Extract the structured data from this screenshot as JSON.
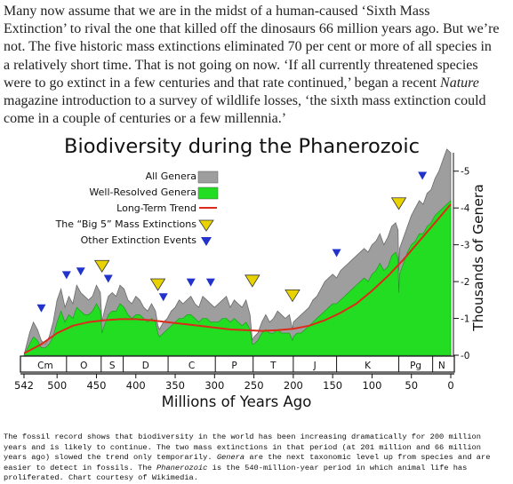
{
  "article": {
    "lines": [
      [
        "Many now assume that we are in the midst of a human-caused ‘Sixth Mass"
      ],
      [
        "Extinction’ to rival the one that killed off the dinosaurs 66 million years ago. But we’re"
      ],
      [
        "not. The five historic mass extinctions eliminated 70 per cent or more of all species in"
      ],
      [
        "a relatively short time. That is not going on now. ‘If all currently threatened species"
      ],
      [
        "were to go extinct in a few centuries and that rate continued,’ began a recent ",
        "Nature"
      ],
      [
        "magazine introduction to a survey of wildlife losses, ‘the sixth mass extinction could"
      ],
      [
        "come in a couple of centuries or a few millennia.’"
      ]
    ]
  },
  "chart_data": {
    "type": "area",
    "title": "Biodiversity during the Phanerozoic",
    "xlabel": "Millions of Years Ago",
    "ylabel": "Thousands of Genera",
    "xlim": [
      542,
      0
    ],
    "ylim": [
      0,
      5.5
    ],
    "x_ticks": [
      542,
      500,
      450,
      400,
      350,
      300,
      250,
      200,
      150,
      100,
      50,
      0
    ],
    "y_ticks": [
      0,
      1,
      2,
      3,
      4,
      5
    ],
    "periods": [
      "Cm",
      "O",
      "S",
      "D",
      "C",
      "P",
      "T",
      "J",
      "K",
      "Pg",
      "N"
    ],
    "period_boundaries": [
      542,
      488,
      444,
      416,
      359,
      299,
      251,
      200,
      145,
      66,
      23,
      0
    ],
    "legend": {
      "items": [
        "All Genera",
        "Well-Resolved Genera",
        "Long-Term Trend",
        "The “Big 5” Mass Extinctions",
        "Other Extinction Events"
      ],
      "placement": "top-left"
    },
    "colors": {
      "all": "#9e9e9e",
      "resolved": "#22dd22",
      "trend": "#dd2a1a",
      "big5": "#e8d200",
      "other": "#2233cc"
    },
    "series": [
      {
        "name": "All Genera",
        "x": [
          542,
          535,
          530,
          525,
          520,
          515,
          510,
          505,
          500,
          495,
          490,
          485,
          480,
          475,
          470,
          465,
          460,
          455,
          450,
          445,
          443,
          440,
          435,
          430,
          425,
          420,
          415,
          410,
          405,
          400,
          395,
          390,
          385,
          380,
          375,
          372,
          370,
          365,
          360,
          355,
          350,
          345,
          340,
          335,
          330,
          325,
          320,
          315,
          310,
          305,
          300,
          295,
          290,
          285,
          280,
          275,
          270,
          265,
          260,
          255,
          252,
          250,
          245,
          240,
          235,
          230,
          225,
          220,
          215,
          210,
          205,
          201,
          200,
          195,
          190,
          185,
          180,
          175,
          170,
          165,
          160,
          155,
          150,
          145,
          140,
          135,
          130,
          125,
          120,
          115,
          110,
          105,
          100,
          95,
          90,
          85,
          80,
          75,
          70,
          67,
          66,
          65,
          60,
          55,
          50,
          45,
          40,
          35,
          30,
          25,
          20,
          15,
          10,
          5,
          0
        ],
        "y": [
          0.0,
          0.6,
          0.9,
          0.7,
          0.4,
          0.3,
          0.5,
          0.9,
          1.5,
          1.8,
          1.3,
          1.6,
          1.4,
          1.9,
          1.7,
          1.6,
          1.5,
          1.6,
          1.9,
          1.7,
          0.9,
          1.2,
          1.6,
          1.7,
          1.6,
          1.9,
          1.8,
          1.5,
          1.4,
          1.6,
          1.5,
          1.3,
          1.2,
          1.4,
          1.2,
          0.8,
          0.7,
          0.9,
          1.0,
          1.2,
          1.3,
          1.5,
          1.4,
          1.5,
          1.6,
          1.4,
          1.3,
          1.6,
          1.5,
          1.4,
          1.3,
          1.4,
          1.5,
          1.6,
          1.3,
          1.5,
          1.4,
          1.3,
          1.5,
          1.1,
          0.4,
          0.5,
          0.6,
          0.9,
          1.1,
          0.9,
          1.0,
          1.2,
          1.1,
          1.0,
          1.1,
          0.7,
          0.9,
          1.0,
          1.1,
          1.2,
          1.3,
          1.5,
          1.6,
          1.8,
          2.0,
          2.1,
          2.2,
          2.1,
          2.3,
          2.4,
          2.5,
          2.6,
          2.7,
          2.8,
          2.9,
          2.8,
          3.0,
          3.1,
          3.3,
          3.0,
          3.2,
          3.5,
          3.6,
          3.4,
          2.3,
          2.9,
          3.2,
          3.5,
          3.8,
          4.0,
          4.2,
          4.1,
          4.4,
          4.5,
          4.8,
          5.0,
          5.3,
          5.6,
          5.5
        ]
      },
      {
        "name": "Well-Resolved Genera",
        "x": [
          542,
          535,
          530,
          525,
          520,
          515,
          510,
          505,
          500,
          495,
          490,
          485,
          480,
          475,
          470,
          465,
          460,
          455,
          450,
          445,
          443,
          440,
          435,
          430,
          425,
          420,
          415,
          410,
          405,
          400,
          395,
          390,
          385,
          380,
          375,
          372,
          370,
          365,
          360,
          355,
          350,
          345,
          340,
          335,
          330,
          325,
          320,
          315,
          310,
          305,
          300,
          295,
          290,
          285,
          280,
          275,
          270,
          265,
          260,
          255,
          252,
          250,
          245,
          240,
          235,
          230,
          225,
          220,
          215,
          210,
          205,
          201,
          200,
          195,
          190,
          185,
          180,
          175,
          170,
          165,
          160,
          155,
          150,
          145,
          140,
          135,
          130,
          125,
          120,
          115,
          110,
          105,
          100,
          95,
          90,
          85,
          80,
          75,
          70,
          67,
          66,
          65,
          60,
          55,
          50,
          45,
          40,
          35,
          30,
          25,
          20,
          15,
          10,
          5,
          0
        ],
        "y": [
          0.0,
          0.3,
          0.5,
          0.4,
          0.2,
          0.2,
          0.3,
          0.5,
          0.9,
          1.2,
          0.9,
          1.1,
          1.0,
          1.3,
          1.2,
          1.1,
          1.1,
          1.2,
          1.4,
          1.2,
          0.6,
          0.8,
          1.1,
          1.2,
          1.2,
          1.4,
          1.3,
          1.1,
          1.0,
          1.1,
          1.1,
          1.0,
          0.9,
          1.0,
          0.9,
          0.6,
          0.5,
          0.6,
          0.7,
          0.8,
          0.9,
          1.0,
          1.0,
          1.1,
          1.1,
          1.0,
          0.9,
          1.0,
          1.0,
          0.9,
          0.9,
          0.9,
          1.0,
          1.0,
          0.9,
          1.0,
          0.9,
          0.8,
          0.9,
          0.7,
          0.3,
          0.3,
          0.4,
          0.6,
          0.7,
          0.6,
          0.6,
          0.7,
          0.6,
          0.6,
          0.6,
          0.4,
          0.5,
          0.6,
          0.6,
          0.7,
          0.8,
          0.9,
          1.0,
          1.1,
          1.2,
          1.3,
          1.4,
          1.4,
          1.5,
          1.6,
          1.7,
          1.8,
          1.9,
          2.0,
          2.1,
          2.0,
          2.2,
          2.3,
          2.5,
          2.3,
          2.4,
          2.7,
          2.8,
          2.6,
          1.7,
          2.2,
          2.5,
          2.8,
          3.0,
          3.1,
          3.3,
          3.3,
          3.5,
          3.6,
          3.8,
          3.9,
          4.0,
          4.1,
          4.2
        ]
      },
      {
        "name": "Long-Term Trend",
        "x": [
          542,
          520,
          500,
          480,
          460,
          440,
          420,
          400,
          380,
          360,
          340,
          320,
          300,
          280,
          260,
          240,
          220,
          200,
          180,
          160,
          140,
          120,
          100,
          80,
          60,
          40,
          20,
          0
        ],
        "y": [
          0.05,
          0.3,
          0.6,
          0.8,
          0.9,
          0.95,
          0.98,
          0.98,
          0.95,
          0.9,
          0.85,
          0.8,
          0.75,
          0.7,
          0.68,
          0.66,
          0.68,
          0.72,
          0.8,
          0.95,
          1.15,
          1.4,
          1.75,
          2.15,
          2.6,
          3.1,
          3.6,
          4.1
        ]
      }
    ],
    "big5_extinctions": [
      443,
      372,
      252,
      201,
      66
    ],
    "other_extinctions": [
      520,
      488,
      470,
      435,
      365,
      330,
      305,
      145,
      36
    ]
  },
  "caption": {
    "lines": [
      [
        "The fossil record shows that biodiversity in the world has been increasing dramatically for 200 million"
      ],
      [
        "years and is likely to continue. The two mass extinctions in that period (at 201 million and 66 million"
      ],
      [
        "years ago) slowed the trend only temporarily. ",
        "Genera",
        " are the next taxonomic level up from species and are"
      ],
      [
        "easier to detect in fossils. The ",
        "Phanerozoic",
        " is the 540-million-year period in which animal life has"
      ],
      [
        "proliferated. Chart courtesy of Wikimedia."
      ]
    ]
  }
}
